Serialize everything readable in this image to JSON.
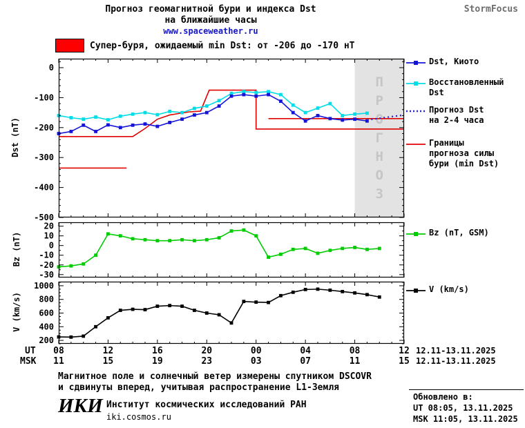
{
  "header": {
    "title_line1": "Прогноз геомагнитной бури и индекса Dst",
    "title_line2": "на ближайшие часы",
    "link": "www.spaceweather.ru",
    "brand": "StormFocus"
  },
  "alert": {
    "text": "Супер-буря, ожидаемый min Dst: от -206 до -170 нТ",
    "color": "#ff0000"
  },
  "legend": {
    "items": [
      {
        "label": "Dst, Киото",
        "color": "#1414d8",
        "style": "marker"
      },
      {
        "label": "Восстановленный\nDst",
        "color": "#00dce8",
        "style": "marker"
      },
      {
        "label": "Прогноз Dst\nна 2-4 часа",
        "color": "#2222dd",
        "style": "dotted"
      },
      {
        "label": "Границы\nпрогноза силы\nбури (min Dst)",
        "color": "#e00000",
        "style": "line"
      },
      {
        "label": "Bz (nT, GSM)",
        "color": "#00cc00",
        "style": "marker"
      },
      {
        "label": "V (km/s)",
        "color": "#000000",
        "style": "marker"
      }
    ]
  },
  "axis": {
    "ut_label": "UT",
    "msk_label": "MSK",
    "ut_ticks": [
      "08",
      "12",
      "16",
      "20",
      "00",
      "04",
      "08",
      "12"
    ],
    "msk_ticks": [
      "11",
      "15",
      "19",
      "23",
      "03",
      "07",
      "11",
      "15"
    ],
    "ut_range": "12.11-13.11.2025",
    "msk_range": "12.11-13.11.2025"
  },
  "footer": {
    "note1": "Магнитное поле и солнечный ветер измерены спутником DSCOVR",
    "note2": "и сдвинуты вперед, учитывая распространение L1-Земля",
    "logo": "ИКИ",
    "institute": "Институт космических исследований РАН",
    "site": "iki.cosmos.ru",
    "updated_label": "Обновлено в:",
    "updated_ut": "UT  08:05, 13.11.2025",
    "updated_msk": "MSK 11:05, 13.11.2025"
  },
  "chart_data": [
    {
      "type": "line",
      "ylabel": "Dst (nT)",
      "xlim": [
        8,
        36
      ],
      "ylim": [
        -500,
        30
      ],
      "yticks": [
        0,
        -100,
        -200,
        -300,
        -400,
        -500
      ],
      "yminor": 20,
      "xticks": [
        8,
        12,
        16,
        20,
        24,
        28,
        32,
        36
      ],
      "xminor": 1,
      "x": [
        8,
        9,
        10,
        11,
        12,
        13,
        14,
        15,
        16,
        17,
        18,
        19,
        20,
        21,
        22,
        23,
        24,
        25,
        26,
        27,
        28,
        29,
        30,
        31,
        32,
        33,
        34,
        35
      ],
      "series": [
        {
          "name": "Восстановленный Dst",
          "color": "#00dce8",
          "marker": true,
          "values": [
            -160,
            -167,
            -172,
            -165,
            -174,
            -162,
            -155,
            -150,
            -157,
            -146,
            -150,
            -136,
            -128,
            -110,
            -86,
            -80,
            -83,
            -80,
            -90,
            -125,
            -150,
            -135,
            -120,
            -160,
            -155,
            -152
          ]
        },
        {
          "name": "Dst, Киото",
          "color": "#1414d8",
          "marker": true,
          "values": [
            -220,
            -213,
            -192,
            -213,
            -191,
            -200,
            -192,
            -188,
            -196,
            -183,
            -172,
            -158,
            -150,
            -128,
            -95,
            -90,
            -95,
            -90,
            -112,
            -150,
            -178,
            -160,
            -170,
            -175,
            -172,
            -178
          ]
        }
      ],
      "forecast": {
        "name": "Прогноз Dst на 2-4 часа",
        "color": "#2222dd",
        "x": [
          33,
          34.5,
          36
        ],
        "values": [
          -175,
          -166,
          -158
        ]
      },
      "boundaries": {
        "name": "Границы прогноза силы бури (min Dst)",
        "color": "#e00000",
        "segments": [
          [
            [
              8,
              -335
            ],
            [
              13.5,
              -335
            ]
          ],
          [
            [
              8,
              -230
            ],
            [
              14,
              -230
            ],
            [
              15,
              -203
            ],
            [
              16,
              -172
            ],
            [
              17,
              -158
            ],
            [
              18.5,
              -148
            ],
            [
              19.5,
              -145
            ],
            [
              20.2,
              -75
            ],
            [
              24,
              -75
            ],
            [
              24,
              -205
            ],
            [
              36,
              -205
            ]
          ],
          [
            [
              25,
              -170
            ],
            [
              36,
              -170
            ]
          ]
        ]
      },
      "band": {
        "x0": 32,
        "x1": 36,
        "label": "ПРОГНОЗ"
      }
    },
    {
      "type": "line",
      "ylabel": "Bz (nT)",
      "xlim": [
        8,
        36
      ],
      "ylim": [
        -33,
        24
      ],
      "yticks": [
        20,
        10,
        0,
        -10,
        -20,
        -30
      ],
      "yminor": 5,
      "xticks": [
        8,
        12,
        16,
        20,
        24,
        28,
        32,
        36
      ],
      "xminor": 1,
      "x": [
        8,
        9,
        10,
        11,
        12,
        13,
        14,
        15,
        16,
        17,
        18,
        19,
        20,
        21,
        22,
        23,
        24,
        25,
        26,
        27,
        28,
        29,
        30,
        31,
        32,
        33,
        34,
        35
      ],
      "series": [
        {
          "name": "Bz (nT, GSM)",
          "color": "#00cc00",
          "marker": true,
          "values": [
            -22,
            -21,
            -19,
            -10,
            12,
            10,
            7,
            6,
            5,
            5,
            6,
            5,
            6,
            8,
            15,
            16,
            10,
            -12,
            -9,
            -4,
            -3,
            -8,
            -5,
            -3,
            -2,
            -4,
            -3
          ]
        }
      ]
    },
    {
      "type": "line",
      "ylabel": "V (km/s)",
      "xlim": [
        8,
        36
      ],
      "ylim": [
        150,
        1060
      ],
      "yticks": [
        1000,
        800,
        600,
        400,
        200
      ],
      "yminor": 50,
      "xticks": [
        8,
        12,
        16,
        20,
        24,
        28,
        32,
        36
      ],
      "xminor": 1,
      "x": [
        8,
        9,
        10,
        11,
        12,
        13,
        14,
        15,
        16,
        17,
        18,
        19,
        20,
        21,
        22,
        23,
        24,
        25,
        26,
        27,
        28,
        29,
        30,
        31,
        32,
        33,
        34,
        35
      ],
      "series": [
        {
          "name": "V (km/s)",
          "color": "#000000",
          "marker": true,
          "values": [
            250,
            248,
            262,
            400,
            530,
            640,
            655,
            650,
            700,
            710,
            700,
            640,
            600,
            575,
            455,
            770,
            760,
            755,
            855,
            905,
            945,
            950,
            935,
            915,
            895,
            870,
            835
          ]
        }
      ]
    }
  ]
}
